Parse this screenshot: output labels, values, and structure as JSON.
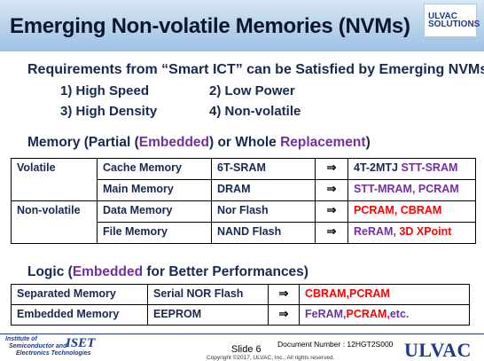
{
  "slide": {
    "title": "Emerging Non-volatile Memories (NVMs)"
  },
  "brand_badge": {
    "line1": "ULVAC",
    "line2": "SOLUTIONS"
  },
  "requirements": {
    "heading": "Requirements from “Smart ICT” can be Satisfied by Emerging NVMs.",
    "items": [
      "1) High Speed",
      "2) Low Power",
      "3) High Density",
      "4) Non-volatile"
    ]
  },
  "memory_section": {
    "heading_prefix": "Memory (Partial (",
    "heading_embedded": "Embedded",
    "heading_mid": ") or Whole ",
    "heading_replacement": "Replacement",
    "heading_suffix": ")",
    "arrow": "⇒",
    "rows": [
      {
        "category": "Volatile",
        "type": "Cache Memory",
        "tech": "6T-SRAM",
        "target_plain": "4T-2MTJ ",
        "target_colored": "STT-SRAM",
        "target_color": "#7030a0"
      },
      {
        "category": "",
        "type": "Main Memory",
        "tech": "DRAM",
        "target_plain": "",
        "target_colored": "STT-MRAM, PCRAM",
        "target_color": "#7030a0"
      },
      {
        "category": "Non-volatile",
        "type": "Data Memory",
        "tech": "Nor Flash",
        "target_plain": "",
        "target_colored": "PCRAM, CBRAM",
        "target_color": "#ff0000"
      },
      {
        "category": "",
        "type": "File Memory",
        "tech": "NAND Flash",
        "target_plain": "",
        "target_colored_a": "ReRAM, ",
        "target_color_a": "#7030a0",
        "target_colored_b": "3D XPoint",
        "target_color_b": "#ff0000"
      }
    ]
  },
  "logic_section": {
    "heading_prefix": "Logic (",
    "heading_embedded": "Embedded",
    "heading_suffix": " for Better Performances)",
    "rows": [
      {
        "type": "Separated Memory",
        "tech": "Serial NOR Flash",
        "target_colored": "CBRAM,PCRAM",
        "target_color": "#ff0000"
      },
      {
        "type": "Embedded Memory",
        "tech": "EEPROM",
        "target_colored_a": "FeRAM,",
        "target_color_a": "#7030a0",
        "target_colored_b": "PCRAM,",
        "target_color_b": "#ff0000",
        "target_colored_c": "etc.",
        "target_color_c": "#7030a0"
      }
    ]
  },
  "footer": {
    "institute_line1": "Institute of",
    "institute_line2": "Semiconductor and",
    "institute_line3": "Electronics Technologies",
    "iset": "ISET",
    "slide_number": "Slide 6",
    "document_number": "Document Number : 12HGT2S000",
    "copyright": "Copyright ©2017, ULVAC, Inc., All rights reserved.",
    "company": "ULVAC"
  },
  "colors": {
    "header_top": "#d7e6f4",
    "header_bottom": "#9cc1e3",
    "navy_text": "#17294f",
    "purple": "#7030a0",
    "red": "#ff0000",
    "brand_blue": "#1b3a8c"
  }
}
